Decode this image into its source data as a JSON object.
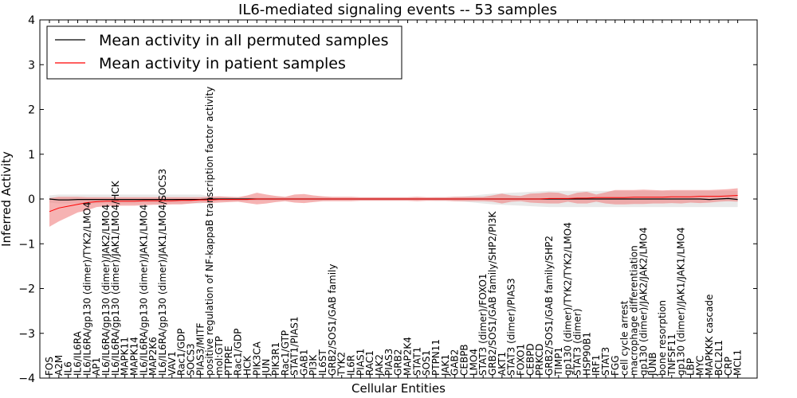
{
  "chart_data": {
    "type": "line",
    "title": "IL6-mediated signaling events -- 53 samples",
    "xlabel": "Cellular Entities",
    "ylabel": "Inferred Activity",
    "ylim": [
      -4,
      4
    ],
    "yticks": [
      -4,
      -3,
      -2,
      -1,
      0,
      1,
      2,
      3,
      4
    ],
    "grid": false,
    "legend_position": "top-left",
    "categories": [
      "FOS",
      "A2M",
      "IL6",
      "IL6/IL6RA",
      "IL6/IL6RA/gp130 (dimer)/TYK2/LMO4",
      "AP1",
      "IL6/IL6RA/gp130 (dimer)/JAK2/LMO4",
      "IL6/IL6RA/gp130 (dimer)/JAK1/LMO4/HCK",
      "MAPK11",
      "MAPK14",
      "IL6/IL6RA/gp130 (dimer)/JAK1/LMO4",
      "MAP2K6",
      "IL6/IL6RA/gp130 (dimer)/JAK1/LMO4/SOCS3",
      "VAV1",
      "Rac1/GDP",
      "SOCS3",
      "PIAS3/MITF",
      "positive regulation of NF-kappaB transcription factor activity",
      "mol:GTP",
      "PTPRE",
      "Rac1/GDP",
      "HCK",
      "PIK3CA",
      "JUN",
      "PIK3R1",
      "Rac1/GTP",
      "STAT1/PIAS1",
      "GAB1",
      "PI3K",
      "IL6ST",
      "GRB2/SOS1/GAB family",
      "TYK2",
      "IL6R",
      "PIAS1",
      "RAC1",
      "JAK2",
      "PIAS3",
      "GRB2",
      "MAP2K4",
      "STAT1",
      "SOS1",
      "PTPN11",
      "JAK1",
      "GAB2",
      "CEBPB",
      "LMO4",
      "STAT3 (dimer)/FOXO1",
      "GRB2/SOS1/GAB family/SHP2/PI3K",
      "AKT1",
      "STAT3 (dimer)/PIAS3",
      "FOXO1",
      "CEBPD",
      "PRKCD",
      "GRB2/SOS1/GAB family/SHP2",
      "TIMP1",
      "gp130 (dimer)/TYK2/TYK2/LMO4",
      "STAT3 (dimer)",
      "HSP90B1",
      "IRF1",
      "STAT3",
      "FGG",
      "cell cycle arrest",
      "macrophage differentiation",
      "gp130 (dimer)/JAK2/JAK2/LMO4",
      "JUNB",
      "bone resorption",
      "TNFSF11",
      "gp130 (dimer)/JAK1/JAK1/LMO4",
      "LBP",
      "MYC",
      "MAPKKK cascade",
      "BCL2L1",
      "CRP",
      "MCL1"
    ],
    "series": [
      {
        "name": "Mean activity in all permuted samples",
        "color": "#000000",
        "band_color": "#bfbfbf",
        "values": [
          0.0,
          -0.02,
          -0.02,
          -0.01,
          -0.01,
          -0.01,
          -0.01,
          -0.01,
          -0.01,
          -0.01,
          -0.01,
          -0.01,
          -0.01,
          -0.01,
          -0.01,
          -0.01,
          -0.01,
          0.0,
          0.0,
          0.0,
          0.0,
          0.0,
          0.0,
          0.0,
          0.0,
          0.0,
          0.0,
          0.0,
          0.0,
          0.0,
          0.0,
          0.0,
          0.0,
          0.0,
          0.0,
          0.0,
          0.0,
          0.0,
          0.0,
          0.0,
          0.0,
          0.0,
          0.0,
          0.0,
          0.0,
          0.0,
          0.0,
          0.0,
          0.0,
          0.0,
          0.0,
          0.0,
          0.0,
          0.0,
          0.0,
          0.0,
          0.0,
          0.0,
          0.0,
          0.0,
          0.0,
          0.0,
          0.0,
          0.0,
          0.0,
          0.0,
          0.0,
          0.0,
          0.0,
          0.0,
          -0.01,
          0.0,
          0.01,
          -0.01
        ],
        "upper": [
          0.08,
          0.1,
          0.1,
          0.1,
          0.1,
          0.1,
          0.1,
          0.1,
          0.1,
          0.1,
          0.1,
          0.1,
          0.1,
          0.1,
          0.1,
          0.1,
          0.1,
          0.06,
          0.05,
          0.05,
          0.05,
          0.04,
          0.04,
          0.04,
          0.04,
          0.04,
          0.04,
          0.04,
          0.04,
          0.04,
          0.03,
          0.03,
          0.03,
          0.03,
          0.03,
          0.03,
          0.03,
          0.03,
          0.03,
          0.03,
          0.03,
          0.04,
          0.04,
          0.05,
          0.06,
          0.08,
          0.1,
          0.12,
          0.13,
          0.14,
          0.15,
          0.16,
          0.17,
          0.18,
          0.18,
          0.18,
          0.18,
          0.18,
          0.18,
          0.18,
          0.18,
          0.18,
          0.18,
          0.18,
          0.18,
          0.18,
          0.18,
          0.18,
          0.18,
          0.18,
          0.18,
          0.18,
          0.18,
          0.18
        ],
        "lower": [
          -0.08,
          -0.1,
          -0.1,
          -0.1,
          -0.1,
          -0.1,
          -0.1,
          -0.1,
          -0.1,
          -0.1,
          -0.1,
          -0.1,
          -0.1,
          -0.1,
          -0.1,
          -0.1,
          -0.1,
          -0.06,
          -0.05,
          -0.05,
          -0.05,
          -0.04,
          -0.04,
          -0.04,
          -0.04,
          -0.04,
          -0.04,
          -0.04,
          -0.04,
          -0.04,
          -0.03,
          -0.03,
          -0.03,
          -0.03,
          -0.03,
          -0.03,
          -0.03,
          -0.03,
          -0.03,
          -0.03,
          -0.03,
          -0.04,
          -0.04,
          -0.05,
          -0.06,
          -0.08,
          -0.1,
          -0.12,
          -0.13,
          -0.14,
          -0.15,
          -0.16,
          -0.17,
          -0.18,
          -0.18,
          -0.18,
          -0.18,
          -0.18,
          -0.18,
          -0.18,
          -0.18,
          -0.18,
          -0.18,
          -0.18,
          -0.18,
          -0.18,
          -0.18,
          -0.18,
          -0.18,
          -0.18,
          -0.18,
          -0.18,
          -0.18,
          -0.18
        ]
      },
      {
        "name": "Mean activity in patient samples",
        "color": "#ff0000",
        "band_color": "#f08080",
        "values": [
          -0.28,
          -0.2,
          -0.16,
          -0.12,
          -0.08,
          -0.06,
          -0.05,
          -0.05,
          -0.05,
          -0.05,
          -0.04,
          -0.04,
          -0.04,
          -0.04,
          -0.03,
          -0.03,
          -0.02,
          -0.02,
          -0.01,
          -0.01,
          -0.01,
          -0.01,
          0.0,
          0.0,
          0.0,
          0.0,
          0.0,
          0.0,
          0.0,
          0.0,
          0.0,
          0.0,
          0.0,
          0.0,
          0.0,
          0.0,
          0.0,
          0.0,
          0.0,
          0.0,
          0.0,
          0.0,
          0.0,
          0.0,
          0.0,
          0.0,
          0.0,
          0.0,
          0.0,
          0.0,
          0.0,
          0.0,
          0.0,
          0.01,
          0.01,
          0.01,
          0.02,
          0.02,
          0.03,
          0.03,
          0.03,
          0.03,
          0.04,
          0.04,
          0.04,
          0.04,
          0.05,
          0.05,
          0.05,
          0.06,
          0.06,
          0.06,
          0.07,
          0.08
        ],
        "upper": [
          0.02,
          0.05,
          0.05,
          0.05,
          0.04,
          0.04,
          0.04,
          0.04,
          0.04,
          0.04,
          0.04,
          0.04,
          0.04,
          0.04,
          0.04,
          0.04,
          0.04,
          0.05,
          0.06,
          0.05,
          0.04,
          0.08,
          0.14,
          0.1,
          0.07,
          0.05,
          0.1,
          0.11,
          0.08,
          0.06,
          0.05,
          0.05,
          0.05,
          0.04,
          0.04,
          0.04,
          0.04,
          0.04,
          0.04,
          0.05,
          0.04,
          0.04,
          0.04,
          0.05,
          0.05,
          0.05,
          0.05,
          0.08,
          0.12,
          0.08,
          0.07,
          0.12,
          0.13,
          0.15,
          0.14,
          0.08,
          0.14,
          0.16,
          0.1,
          0.15,
          0.2,
          0.2,
          0.2,
          0.21,
          0.2,
          0.19,
          0.2,
          0.2,
          0.2,
          0.2,
          0.2,
          0.21,
          0.22,
          0.24
        ],
        "lower": [
          -0.62,
          -0.5,
          -0.4,
          -0.3,
          -0.25,
          -0.18,
          -0.16,
          -0.15,
          -0.15,
          -0.15,
          -0.14,
          -0.13,
          -0.13,
          -0.12,
          -0.12,
          -0.1,
          -0.08,
          -0.09,
          -0.08,
          -0.07,
          -0.06,
          -0.09,
          -0.12,
          -0.1,
          -0.07,
          -0.05,
          -0.08,
          -0.09,
          -0.07,
          -0.05,
          -0.05,
          -0.05,
          -0.05,
          -0.04,
          -0.04,
          -0.04,
          -0.04,
          -0.04,
          -0.04,
          -0.05,
          -0.04,
          -0.04,
          -0.04,
          -0.05,
          -0.05,
          -0.05,
          -0.05,
          -0.06,
          -0.1,
          -0.06,
          -0.05,
          -0.08,
          -0.09,
          -0.1,
          -0.1,
          -0.06,
          -0.1,
          -0.1,
          -0.06,
          -0.1,
          -0.12,
          -0.12,
          -0.11,
          -0.11,
          -0.1,
          -0.1,
          -0.09,
          -0.1,
          -0.08,
          -0.09,
          -0.08,
          -0.06,
          -0.05,
          -0.06
        ]
      }
    ]
  }
}
